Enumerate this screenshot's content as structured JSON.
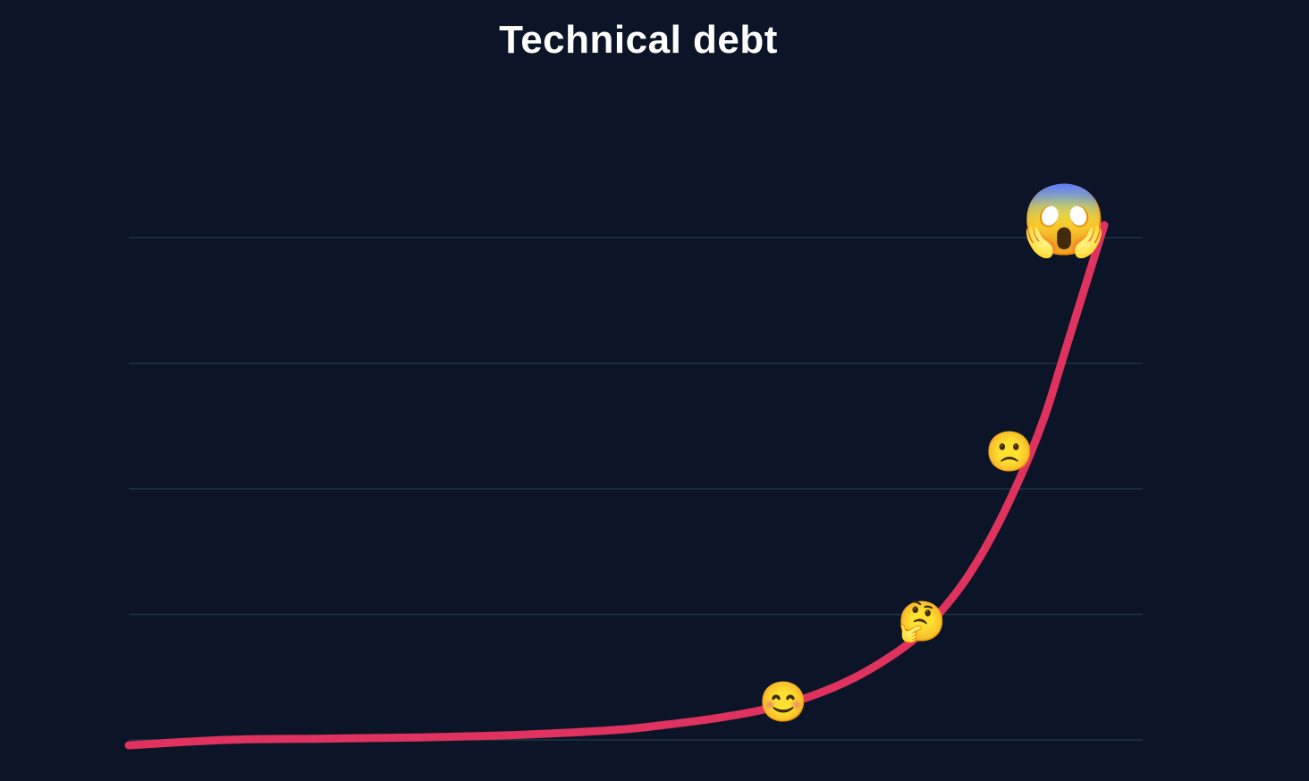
{
  "chart_data": {
    "type": "line",
    "title": "Technical debt",
    "xlabel": "",
    "ylabel": "",
    "xlim": [
      0,
      1
    ],
    "ylim": [
      0,
      4.2
    ],
    "grid": true,
    "legend": "none",
    "series": [
      {
        "color": "#e0325e",
        "x": [
          0,
          0.1,
          0.2,
          0.3,
          0.4,
          0.5,
          0.55,
          0.6,
          0.65,
          0.7,
          0.75,
          0.8,
          0.83,
          0.86,
          0.89,
          0.92,
          0.94,
          0.96,
          0.98,
          1.0
        ],
        "y": [
          0,
          0.0,
          0.01,
          0.02,
          0.04,
          0.08,
          0.12,
          0.17,
          0.24,
          0.35,
          0.52,
          0.77,
          1.0,
          1.3,
          1.7,
          2.2,
          2.6,
          3.1,
          3.6,
          4.1
        ]
      }
    ],
    "annotations": [
      {
        "name": "smiling-face-icon",
        "glyph": "😊",
        "x": 0.671,
        "y": 0.31
      },
      {
        "name": "thinking-face-icon",
        "glyph": "🤔",
        "x": 0.813,
        "y": 0.95
      },
      {
        "name": "slightly-frowning-face-icon",
        "glyph": "🙁",
        "x": 0.903,
        "y": 2.3
      },
      {
        "name": "screaming-face-icon",
        "glyph": "😱",
        "x": 0.959,
        "y": 4.15
      }
    ]
  },
  "colors": {
    "background": "#0b1527",
    "gridline": "#1f3545",
    "line": "#e0325e",
    "title": "#ffffff"
  }
}
